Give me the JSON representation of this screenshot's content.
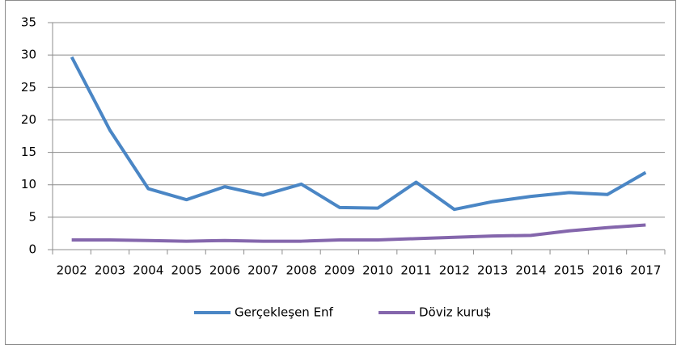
{
  "chart_data": {
    "type": "line",
    "categories": [
      "2002",
      "2003",
      "2004",
      "2005",
      "2006",
      "2007",
      "2008",
      "2009",
      "2010",
      "2011",
      "2012",
      "2013",
      "2014",
      "2015",
      "2016",
      "2017"
    ],
    "series": [
      {
        "name": "Gerçekleşen Enf",
        "color": "#4a86c5",
        "values": [
          29.7,
          18.4,
          9.4,
          7.7,
          9.7,
          8.4,
          10.1,
          6.5,
          6.4,
          10.4,
          6.2,
          7.4,
          8.2,
          8.8,
          8.5,
          11.9
        ]
      },
      {
        "name": "Döviz kuru$",
        "color": "#8466ac",
        "values": [
          1.5,
          1.5,
          1.4,
          1.3,
          1.4,
          1.3,
          1.3,
          1.5,
          1.5,
          1.7,
          1.9,
          2.1,
          2.2,
          2.9,
          3.4,
          3.8
        ]
      }
    ],
    "ylim": [
      0,
      35
    ],
    "yticks": [
      0,
      5,
      10,
      15,
      20,
      25,
      30,
      35
    ],
    "grid": true,
    "legend": "bottom"
  }
}
